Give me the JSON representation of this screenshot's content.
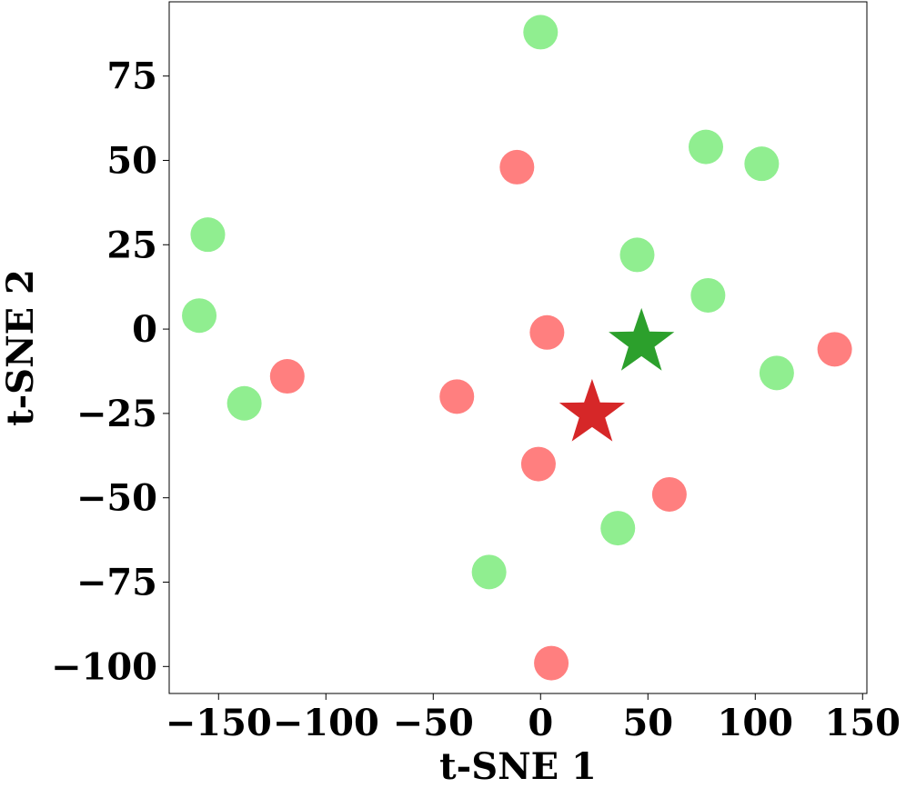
{
  "chart_data": {
    "type": "scatter",
    "title": "",
    "xlabel": "t-SNE 1",
    "ylabel": "t-SNE 2",
    "xlim": [
      -173,
      152
    ],
    "ylim": [
      -108,
      97
    ],
    "xticks": [
      {
        "value": -150,
        "label": "−150"
      },
      {
        "value": -100,
        "label": "−100"
      },
      {
        "value": -50,
        "label": "−50"
      },
      {
        "value": 0,
        "label": "0"
      },
      {
        "value": 50,
        "label": "50"
      },
      {
        "value": 100,
        "label": "100"
      },
      {
        "value": 150,
        "label": "150"
      }
    ],
    "yticks": [
      {
        "value": 75,
        "label": "75"
      },
      {
        "value": 50,
        "label": "50"
      },
      {
        "value": 25,
        "label": "25"
      },
      {
        "value": 0,
        "label": "0"
      },
      {
        "value": -25,
        "label": "−25"
      },
      {
        "value": -50,
        "label": "−50"
      },
      {
        "value": -75,
        "label": "−75"
      },
      {
        "value": -100,
        "label": "−100"
      }
    ],
    "grid": false,
    "legend": null,
    "series": [
      {
        "color": "#90ee90",
        "marker": "circle",
        "points": [
          {
            "x": 0,
            "y": 88
          },
          {
            "x": 77,
            "y": 54
          },
          {
            "x": 103,
            "y": 49
          },
          {
            "x": -155,
            "y": 28
          },
          {
            "x": 45,
            "y": 22
          },
          {
            "x": 78,
            "y": 10
          },
          {
            "x": -159,
            "y": 4
          },
          {
            "x": 110,
            "y": -13
          },
          {
            "x": -138,
            "y": -22
          },
          {
            "x": 36,
            "y": -59
          },
          {
            "x": -24,
            "y": -72
          }
        ]
      },
      {
        "color": "#ff7f7f",
        "marker": "circle",
        "points": [
          {
            "x": -11,
            "y": 48
          },
          {
            "x": 3,
            "y": -1
          },
          {
            "x": 137,
            "y": -6
          },
          {
            "x": -118,
            "y": -14
          },
          {
            "x": -39,
            "y": -20
          },
          {
            "x": -1,
            "y": -40
          },
          {
            "x": 60,
            "y": -49
          },
          {
            "x": 5,
            "y": -99
          }
        ]
      },
      {
        "color": "#2ca02c",
        "marker": "star",
        "points": [
          {
            "x": 47,
            "y": -4
          }
        ]
      },
      {
        "color": "#d62728",
        "marker": "star",
        "points": [
          {
            "x": 24,
            "y": -25
          }
        ]
      }
    ]
  }
}
